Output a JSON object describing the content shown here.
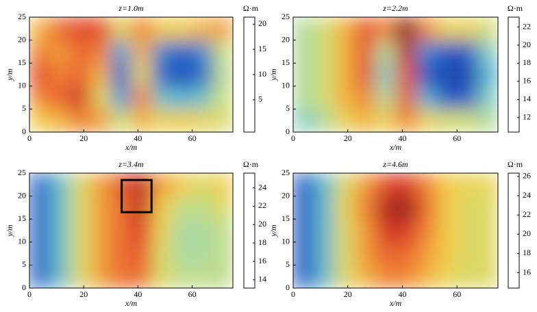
{
  "chart_data": [
    {
      "type": "heatmap",
      "title": "z=1.0m",
      "x_label": "x/m",
      "y_label": "y/m",
      "colorbar_label": "Ω·m",
      "xlim": [
        0,
        75
      ],
      "ylim": [
        0,
        25
      ],
      "xticks": [
        0,
        20,
        40,
        60
      ],
      "yticks": [
        0,
        5,
        10,
        15,
        20,
        25
      ],
      "zlim": [
        -1.4,
        21.4
      ],
      "zticks": [
        5,
        10,
        15,
        20
      ],
      "colormap": [
        "#1c2a80",
        "#2457c4",
        "#3fa7d8",
        "#8fd3c0",
        "#cde07a",
        "#f2d04a",
        "#f28a35",
        "#de3a2a",
        "#7a1a1a"
      ],
      "x_edges": [
        0,
        7.5,
        15,
        22.5,
        30,
        37.5,
        45,
        52.5,
        60,
        67.5,
        75
      ],
      "y_edges": [
        0,
        5,
        10,
        15,
        20,
        25
      ],
      "z": [
        [
          13,
          14,
          16,
          15,
          10,
          14,
          12,
          13,
          12,
          11
        ],
        [
          16,
          17,
          19,
          12,
          4,
          16,
          6,
          5,
          6,
          10
        ],
        [
          18,
          16,
          17,
          14,
          2,
          12,
          2,
          1,
          2,
          9
        ],
        [
          16,
          15,
          17,
          16,
          4,
          14,
          3,
          2,
          3,
          10
        ],
        [
          14,
          17,
          18,
          18,
          12,
          16,
          13,
          13,
          14,
          15
        ]
      ]
    },
    {
      "type": "heatmap",
      "title": "z=2.2m",
      "x_label": "x/m",
      "y_label": "y/m",
      "colorbar_label": "Ω·m",
      "xlim": [
        0,
        75
      ],
      "ylim": [
        0,
        25
      ],
      "xticks": [
        0,
        20,
        40,
        60
      ],
      "yticks": [
        0,
        5,
        10,
        15,
        20,
        25
      ],
      "zlim": [
        10.4,
        23.1
      ],
      "zticks": [
        12,
        14,
        16,
        18,
        20,
        22
      ],
      "colormap": [
        "#1c2a80",
        "#2457c4",
        "#3fa7d8",
        "#8fd3c0",
        "#cde07a",
        "#f2d04a",
        "#f28a35",
        "#de3a2a",
        "#7a1a1a"
      ],
      "x_edges": [
        0,
        7.5,
        15,
        22.5,
        30,
        37.5,
        45,
        52.5,
        60,
        67.5,
        75
      ],
      "y_edges": [
        0,
        5,
        10,
        15,
        20,
        25
      ],
      "z": [
        [
          15,
          16,
          18,
          19,
          18,
          20,
          18,
          17,
          17,
          16
        ],
        [
          16,
          17,
          19,
          20,
          16,
          21,
          14,
          12,
          12,
          15
        ],
        [
          16,
          17,
          19,
          21,
          15,
          21,
          12,
          11.5,
          11.5,
          14
        ],
        [
          16,
          17,
          19,
          21,
          16,
          22,
          13,
          12,
          12,
          15
        ],
        [
          16,
          17,
          19,
          21,
          20,
          23,
          20,
          18,
          18,
          17
        ]
      ]
    },
    {
      "type": "heatmap",
      "title": "z=3.4m",
      "x_label": "x/m",
      "y_label": "y/m",
      "colorbar_label": "Ω·m",
      "xlim": [
        0,
        75
      ],
      "ylim": [
        0,
        25
      ],
      "xticks": [
        0,
        20,
        40,
        60
      ],
      "yticks": [
        0,
        5,
        10,
        15,
        20,
        25
      ],
      "zlim": [
        13.1,
        25.6
      ],
      "zticks": [
        14,
        16,
        18,
        20,
        22,
        24
      ],
      "colormap": [
        "#1c2a80",
        "#2457c4",
        "#3fa7d8",
        "#8fd3c0",
        "#cde07a",
        "#f2d04a",
        "#f28a35",
        "#de3a2a",
        "#7a1a1a"
      ],
      "x_edges": [
        0,
        7.5,
        15,
        22.5,
        30,
        37.5,
        45,
        52.5,
        60,
        67.5,
        75
      ],
      "y_edges": [
        0,
        5,
        10,
        15,
        20,
        25
      ],
      "z": [
        [
          15,
          17,
          20,
          22,
          23,
          23,
          20,
          19,
          19,
          19
        ],
        [
          15,
          17,
          20,
          22,
          23,
          23.5,
          20,
          18.5,
          18.5,
          19
        ],
        [
          15,
          17,
          20,
          22,
          23,
          24,
          20.5,
          18.5,
          18.5,
          19
        ],
        [
          15,
          17,
          20,
          22,
          23,
          24.5,
          21,
          19,
          19,
          20
        ],
        [
          15,
          17,
          20,
          22,
          23.5,
          24.5,
          22,
          21,
          20,
          21
        ]
      ],
      "box": {
        "x": [
          34,
          45
        ],
        "y": [
          16.5,
          23.5
        ]
      }
    },
    {
      "type": "heatmap",
      "title": "z=4.6m",
      "x_label": "x/m",
      "y_label": "y/m",
      "colorbar_label": "Ω·m",
      "xlim": [
        0,
        75
      ],
      "ylim": [
        0,
        25
      ],
      "xticks": [
        0,
        20,
        40,
        60
      ],
      "yticks": [
        0,
        5,
        10,
        15,
        20,
        25
      ],
      "zlim": [
        14.4,
        26.35
      ],
      "zticks": [
        16,
        18,
        20,
        22,
        24,
        26
      ],
      "colormap": [
        "#1c2a80",
        "#2457c4",
        "#3fa7d8",
        "#8fd3c0",
        "#cde07a",
        "#f2d04a",
        "#f28a35",
        "#de3a2a",
        "#7a1a1a"
      ],
      "x_edges": [
        0,
        7.5,
        15,
        22.5,
        30,
        37.5,
        45,
        52.5,
        60,
        67.5,
        75
      ],
      "y_edges": [
        0,
        5,
        10,
        15,
        20,
        25
      ],
      "z": [
        [
          16,
          18,
          21,
          22.5,
          23.5,
          23.5,
          22.5,
          21.5,
          21,
          21
        ],
        [
          16,
          18,
          21,
          23,
          24,
          24,
          23,
          22,
          21,
          21
        ],
        [
          16,
          18,
          21,
          23,
          25,
          25,
          23.5,
          22,
          21,
          21
        ],
        [
          16,
          18,
          21.5,
          23.5,
          25.5,
          26,
          24,
          22,
          21,
          21
        ],
        [
          16,
          18,
          21,
          23,
          24.5,
          25,
          23.5,
          22,
          21.5,
          21.5
        ]
      ]
    }
  ]
}
